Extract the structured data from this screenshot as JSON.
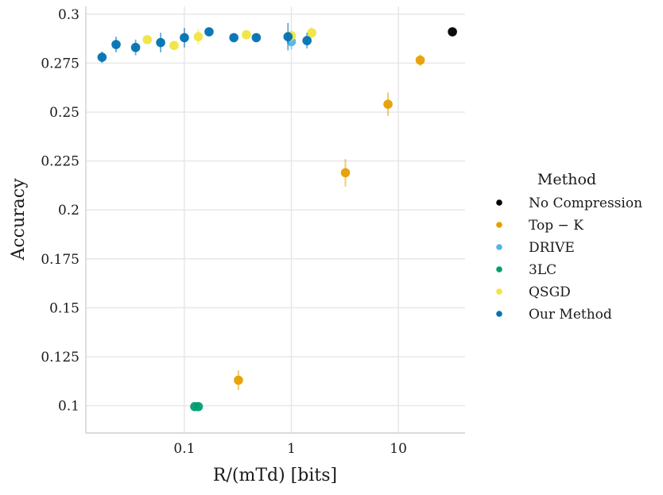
{
  "chart_data": {
    "type": "scatter",
    "title": "",
    "xlabel": "R/(mTd) [bits]",
    "ylabel": "Accuracy",
    "xscale": "log",
    "xlim": [
      0.012,
      42
    ],
    "ylim": [
      0.086,
      0.304
    ],
    "x_ticks": [
      {
        "value": 0.1,
        "label": "0.1"
      },
      {
        "value": 1,
        "label": "1"
      },
      {
        "value": 10,
        "label": "10"
      }
    ],
    "y_ticks": [
      {
        "value": 0.1,
        "label": "0.1"
      },
      {
        "value": 0.125,
        "label": "0.125"
      },
      {
        "value": 0.15,
        "label": "0.15"
      },
      {
        "value": 0.175,
        "label": "0.175"
      },
      {
        "value": 0.2,
        "label": "0.2"
      },
      {
        "value": 0.225,
        "label": "0.225"
      },
      {
        "value": 0.25,
        "label": "0.25"
      },
      {
        "value": 0.275,
        "label": "0.275"
      },
      {
        "value": 0.3,
        "label": "0.3"
      }
    ],
    "grid": true,
    "legend": {
      "title": "Method",
      "position": "right"
    },
    "series": [
      {
        "name": "No Compression",
        "color": "#000000",
        "points": [
          {
            "x": 32,
            "y": 0.291,
            "err": 0.0
          }
        ]
      },
      {
        "name": "Top − K",
        "color": "#E69F00",
        "points": [
          {
            "x": 0.32,
            "y": 0.113,
            "err": 0.005
          },
          {
            "x": 3.2,
            "y": 0.219,
            "err": 0.007
          },
          {
            "x": 8,
            "y": 0.254,
            "err": 0.006
          },
          {
            "x": 16,
            "y": 0.2765,
            "err": 0.003
          }
        ]
      },
      {
        "name": "DRIVE",
        "color": "#56B4E9",
        "points": [
          {
            "x": 1.0,
            "y": 0.286,
            "err": 0.004
          }
        ]
      },
      {
        "name": "3LC",
        "color": "#009E73",
        "points": [
          {
            "x": 0.125,
            "y": 0.0995,
            "err": 0.002
          },
          {
            "x": 0.135,
            "y": 0.0995,
            "err": 0.002
          }
        ]
      },
      {
        "name": "QSGD",
        "color": "#F0E442",
        "points": [
          {
            "x": 0.045,
            "y": 0.287,
            "err": 0.002
          },
          {
            "x": 0.08,
            "y": 0.284,
            "err": 0.002
          },
          {
            "x": 0.135,
            "y": 0.2885,
            "err": 0.004
          },
          {
            "x": 0.38,
            "y": 0.2895,
            "err": 0.002
          },
          {
            "x": 1.0,
            "y": 0.289,
            "err": 0.003
          },
          {
            "x": 1.55,
            "y": 0.2905,
            "err": 0.003
          }
        ]
      },
      {
        "name": "Our Method",
        "color": "#0072B2",
        "points": [
          {
            "x": 0.017,
            "y": 0.278,
            "err": 0.003
          },
          {
            "x": 0.023,
            "y": 0.2845,
            "err": 0.004
          },
          {
            "x": 0.035,
            "y": 0.283,
            "err": 0.004
          },
          {
            "x": 0.06,
            "y": 0.2855,
            "err": 0.005
          },
          {
            "x": 0.1,
            "y": 0.288,
            "err": 0.005
          },
          {
            "x": 0.17,
            "y": 0.291,
            "err": 0.002
          },
          {
            "x": 0.29,
            "y": 0.288,
            "err": 0.002
          },
          {
            "x": 0.47,
            "y": 0.288,
            "err": 0.002
          },
          {
            "x": 0.93,
            "y": 0.2885,
            "err": 0.007
          },
          {
            "x": 1.4,
            "y": 0.2865,
            "err": 0.004
          }
        ]
      }
    ]
  }
}
